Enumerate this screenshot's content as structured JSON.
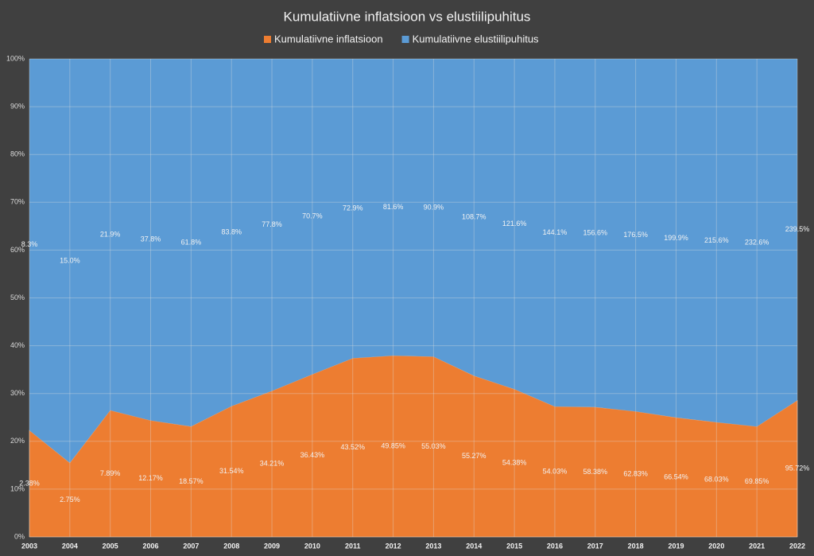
{
  "chart_data": {
    "type": "area",
    "stacking": "percent",
    "title": "Kumulatiivne inflatsioon vs elustiilipuhitus",
    "categories": [
      "2003",
      "2004",
      "2005",
      "2006",
      "2007",
      "2008",
      "2009",
      "2010",
      "2011",
      "2012",
      "2013",
      "2014",
      "2015",
      "2016",
      "2017",
      "2018",
      "2019",
      "2020",
      "2021",
      "2022"
    ],
    "series": [
      {
        "name": "Kumulatiivne inflatsioon",
        "color": "#ed7d31",
        "values": [
          2.38,
          2.75,
          7.89,
          12.17,
          18.57,
          31.54,
          34.21,
          36.43,
          43.52,
          49.85,
          55.03,
          55.27,
          54.38,
          54.03,
          58.38,
          62.83,
          66.54,
          68.03,
          69.85,
          95.72
        ],
        "value_labels": [
          "2.38%",
          "2.75%",
          "7.89%",
          "12.17%",
          "18.57%",
          "31.54%",
          "34.21%",
          "36.43%",
          "43.52%",
          "49.85%",
          "55.03%",
          "55.27%",
          "54.38%",
          "54.03%",
          "58.38%",
          "62.83%",
          "66.54%",
          "68.03%",
          "69.85%",
          "95.72%"
        ]
      },
      {
        "name": "Kumulatiivne elustiilipuhitus",
        "color": "#5b9bd5",
        "values": [
          8.3,
          15.0,
          21.9,
          37.8,
          61.8,
          83.8,
          77.8,
          70.7,
          72.9,
          81.6,
          90.9,
          108.7,
          121.6,
          144.1,
          156.6,
          176.5,
          199.9,
          215.6,
          232.6,
          239.5
        ],
        "value_labels": [
          "8.3%",
          "15.0%",
          "21.9%",
          "37.8%",
          "61.8%",
          "83.8%",
          "77.8%",
          "70.7%",
          "72.9%",
          "81.6%",
          "90.9%",
          "108.7%",
          "121.6%",
          "144.1%",
          "156.6%",
          "176.5%",
          "199.9%",
          "215.6%",
          "232.6%",
          "239.5%"
        ]
      }
    ],
    "ylim": [
      0,
      100
    ],
    "yticks": [
      {
        "value": 0,
        "label": "0%"
      },
      {
        "value": 10,
        "label": "10%"
      },
      {
        "value": 20,
        "label": "20%"
      },
      {
        "value": 30,
        "label": "30%"
      },
      {
        "value": 40,
        "label": "40%"
      },
      {
        "value": 50,
        "label": "50%"
      },
      {
        "value": 60,
        "label": "60%"
      },
      {
        "value": 70,
        "label": "70%"
      },
      {
        "value": 80,
        "label": "80%"
      },
      {
        "value": 90,
        "label": "90%"
      },
      {
        "value": 100,
        "label": "100%"
      }
    ],
    "grid": true,
    "legend": "top"
  }
}
